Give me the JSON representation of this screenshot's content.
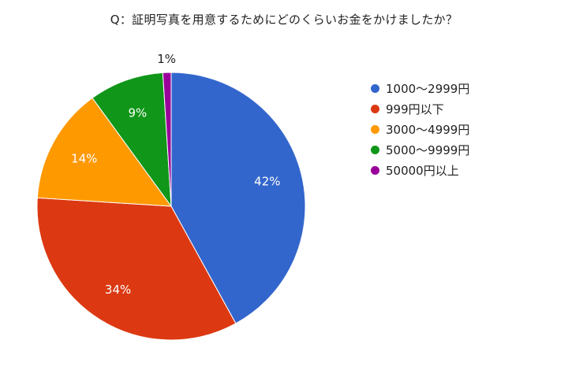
{
  "chart_data": {
    "type": "pie",
    "title": "Q：証明写真を用意するためにどのくらいお金をかけましたか？",
    "categories": [
      "1000〜2999円",
      "999円以下",
      "3000〜4999円",
      "5000〜9999円",
      "50000円以上"
    ],
    "values": [
      42,
      34,
      14,
      9,
      1
    ],
    "value_labels": [
      "42%",
      "34%",
      "14%",
      "9%",
      "1%"
    ],
    "colors": [
      "#3366cc",
      "#dc3912",
      "#ff9900",
      "#109618",
      "#990099"
    ],
    "label_colors": [
      "#ffffff",
      "#ffffff",
      "#ffffff",
      "#ffffff",
      "#222222"
    ],
    "legend_position": "right",
    "start_angle": "top",
    "direction": "clockwise"
  }
}
